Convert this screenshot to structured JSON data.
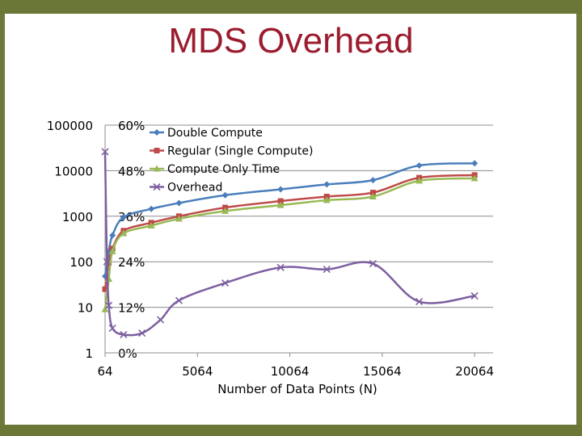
{
  "slide": {
    "title": "MDS Overhead"
  },
  "colors": {
    "double": "#4a7ebb",
    "regular": "#be4b48",
    "compute": "#98b954",
    "overhead": "#7d5fa0",
    "frame": "#6b7737",
    "title": "#9b1c2e"
  },
  "chart_data": {
    "type": "line",
    "title": "",
    "xlabel": "Number of Data Points (N)",
    "ylabel": "",
    "x_ticks": [
      "64",
      "5064",
      "10064",
      "15064",
      "20064"
    ],
    "x_tick_values": [
      64,
      5064,
      10064,
      15064,
      20064
    ],
    "xlim": [
      64,
      21064
    ],
    "y_left_ticks": [
      "100000",
      "10000",
      "1000",
      "100",
      "10",
      "1"
    ],
    "y_left_scale": "log",
    "ylim_left": [
      1,
      100000
    ],
    "y_right_ticks": [
      "60%",
      "48%",
      "36%",
      "24%",
      "12%",
      "0%"
    ],
    "ylim_right": [
      0,
      60
    ],
    "grid": true,
    "legend_position": "top-left",
    "series": [
      {
        "name": "Double Compute",
        "axis": "left",
        "marker": "diamond",
        "x": [
          64,
          264,
          464,
          1064,
          2564,
          4064,
          6564,
          9564,
          12064,
          14564,
          17064,
          20064
        ],
        "y": [
          48,
          170,
          380,
          950,
          1450,
          1950,
          2900,
          3900,
          5000,
          6200,
          13000,
          14500
        ]
      },
      {
        "name": "Regular (Single Compute)",
        "axis": "left",
        "marker": "square",
        "x": [
          64,
          264,
          464,
          1064,
          2564,
          4064,
          6564,
          9564,
          12064,
          14564,
          17064,
          20064
        ],
        "y": [
          25,
          95,
          195,
          480,
          720,
          1000,
          1550,
          2150,
          2700,
          3300,
          7000,
          8000
        ]
      },
      {
        "name": "Compute Only Time",
        "axis": "left",
        "marker": "triangle",
        "x": [
          64,
          264,
          464,
          1064,
          2564,
          4064,
          6564,
          9564,
          12064,
          14564,
          17064,
          20064
        ],
        "y": [
          9,
          42,
          170,
          420,
          620,
          880,
          1300,
          1750,
          2250,
          2700,
          6000,
          6800
        ]
      },
      {
        "name": "Overhead",
        "axis": "right",
        "marker": "x",
        "x": [
          64,
          164,
          264,
          464,
          1064,
          2064,
          3064,
          4064,
          6564,
          9564,
          12064,
          14564,
          17064,
          20064
        ],
        "y": [
          53,
          24,
          12.5,
          6.5,
          4.8,
          5.2,
          8.7,
          13.8,
          18.4,
          22.5,
          22,
          23.5,
          13.5,
          15
        ]
      }
    ]
  }
}
